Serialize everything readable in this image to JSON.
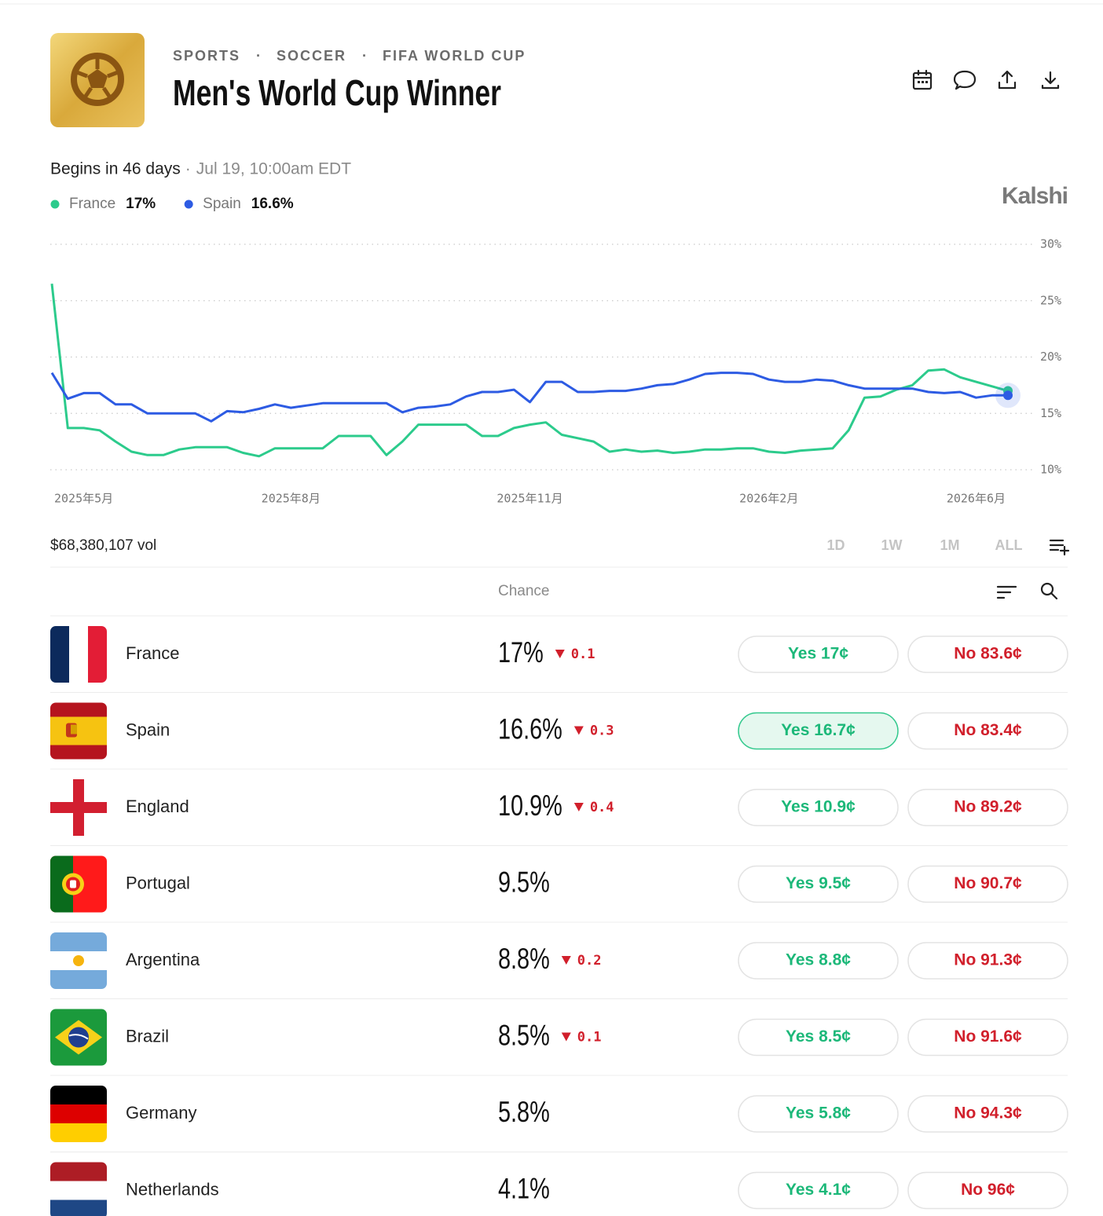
{
  "header": {
    "breadcrumb": [
      "SPORTS",
      "SOCCER",
      "FIFA WORLD CUP"
    ],
    "title": "Men's World Cup Winner",
    "logo": "Kalshi"
  },
  "schedule": {
    "countdown": "Begins in 46 days",
    "date": "Jul 19, 10:00am EDT"
  },
  "chart_data": {
    "type": "line",
    "categories": [
      null,
      null,
      "2025年5月",
      null,
      null,
      null,
      null,
      null,
      null,
      null,
      null,
      null,
      null,
      null,
      null,
      "2025年8月",
      null,
      null,
      null,
      null,
      null,
      null,
      null,
      null,
      null,
      null,
      null,
      null,
      null,
      null,
      "2025年11月",
      null,
      null,
      null,
      null,
      null,
      null,
      null,
      null,
      null,
      null,
      null,
      null,
      null,
      null,
      "2026年2月",
      null,
      null,
      null,
      null,
      null,
      null,
      null,
      null,
      null,
      null,
      null,
      null,
      "2026年6月",
      null,
      null
    ],
    "series": [
      {
        "name": "France",
        "current": "17%",
        "color": "#2ccb8c",
        "values": [
          26.5,
          13.7,
          13.7,
          13.5,
          12.5,
          11.6,
          11.3,
          11.3,
          11.8,
          12,
          12,
          12,
          11.5,
          11.2,
          11.9,
          11.9,
          11.9,
          11.9,
          13,
          13,
          13,
          11.3,
          12.5,
          14,
          14,
          14,
          14,
          13,
          13,
          13.7,
          14,
          14.2,
          13.1,
          12.8,
          12.5,
          11.6,
          11.8,
          11.6,
          11.7,
          11.5,
          11.6,
          11.8,
          11.8,
          11.9,
          11.9,
          11.6,
          11.5,
          11.7,
          11.8,
          11.9,
          13.5,
          16.4,
          16.5,
          17.1,
          17.5,
          18.8,
          18.9,
          18.2,
          17.8,
          17.4,
          17
        ]
      },
      {
        "name": "Spain",
        "current": "16.6%",
        "color": "#2d5be3",
        "values": [
          18.6,
          16.3,
          16.8,
          16.8,
          15.8,
          15.8,
          15,
          15,
          15,
          15,
          14.3,
          15.2,
          15.1,
          15.4,
          15.8,
          15.5,
          15.7,
          15.9,
          15.9,
          15.9,
          15.9,
          15.9,
          15.1,
          15.5,
          15.6,
          15.8,
          16.5,
          16.9,
          16.9,
          17.1,
          16,
          17.8,
          17.8,
          16.9,
          16.9,
          17,
          17,
          17.2,
          17.5,
          17.6,
          18,
          18.5,
          18.6,
          18.6,
          18.5,
          18,
          17.8,
          17.8,
          18,
          17.9,
          17.5,
          17.2,
          17.2,
          17.2,
          17.2,
          16.9,
          16.8,
          16.9,
          16.4,
          16.6,
          16.6
        ]
      }
    ],
    "ylim": [
      10,
      30
    ],
    "yticks": [
      {
        "value": 10,
        "label": "10%"
      },
      {
        "value": 15,
        "label": "15%"
      },
      {
        "value": 20,
        "label": "20%"
      },
      {
        "value": 25,
        "label": "25%"
      },
      {
        "value": 30,
        "label": "30%"
      }
    ],
    "grid": true
  },
  "volume": "$68,380,107 vol",
  "ranges": [
    "1D",
    "1W",
    "1M",
    "ALL"
  ],
  "selected_range": 3,
  "table": {
    "column": "Chance",
    "rows": [
      {
        "name": "France",
        "chance": "17%",
        "change": "0.1",
        "yes": "Yes 17¢",
        "no": "No 83.6¢"
      },
      {
        "name": "Spain",
        "chance": "16.6%",
        "change": "0.3",
        "yes": "Yes 16.7¢",
        "no": "No 83.4¢",
        "selected": true
      },
      {
        "name": "England",
        "chance": "10.9%",
        "change": "0.4",
        "yes": "Yes 10.9¢",
        "no": "No 89.2¢"
      },
      {
        "name": "Portugal",
        "chance": "9.5%",
        "yes": "Yes 9.5¢",
        "no": "No 90.7¢"
      },
      {
        "name": "Argentina",
        "chance": "8.8%",
        "change": "0.2",
        "yes": "Yes 8.8¢",
        "no": "No 91.3¢"
      },
      {
        "name": "Brazil",
        "chance": "8.5%",
        "change": "0.1",
        "yes": "Yes 8.5¢",
        "no": "No 91.6¢"
      },
      {
        "name": "Germany",
        "chance": "5.8%",
        "yes": "Yes 5.8¢",
        "no": "No 94.3¢"
      },
      {
        "name": "Netherlands",
        "chance": "4.1%",
        "yes": "Yes 4.1¢",
        "no": "No 96¢"
      }
    ]
  }
}
